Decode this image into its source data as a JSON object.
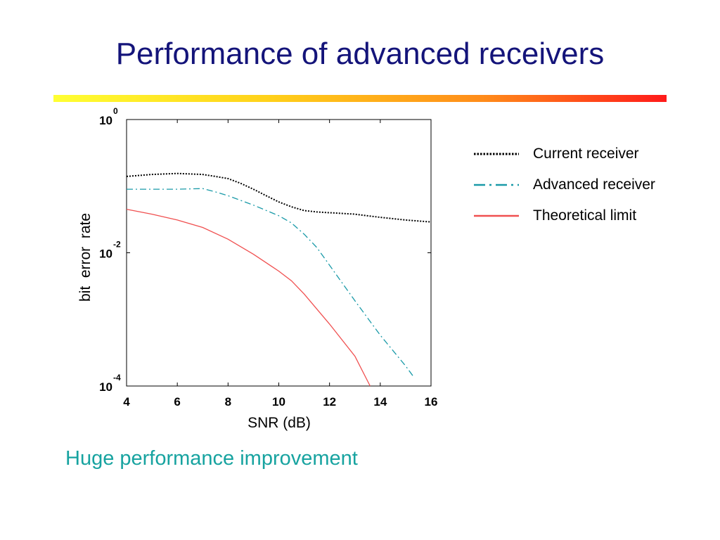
{
  "slide": {
    "title": "Performance of advanced receivers",
    "caption": "Huge performance improvement",
    "colors": {
      "title": "#14147a",
      "caption": "#17a3a0"
    }
  },
  "chart_data": {
    "type": "line",
    "xlabel": "SNR (dB)",
    "ylabel": "bit  error  rate",
    "xlim": [
      4,
      16
    ],
    "ylim": [
      0.0001,
      1
    ],
    "yscale": "log",
    "xticks": [
      4,
      6,
      8,
      10,
      12,
      14,
      16
    ],
    "yticks": [
      {
        "base": "10",
        "exp": "0"
      },
      {
        "base": "10",
        "exp": "-2"
      },
      {
        "base": "10",
        "exp": "-4"
      }
    ],
    "grid": false,
    "legend": "right",
    "series": [
      {
        "name": "Current receiver",
        "color": "#000000",
        "style": "dotted",
        "points": [
          [
            4,
            0.14
          ],
          [
            5,
            0.15
          ],
          [
            6,
            0.155
          ],
          [
            7,
            0.15
          ],
          [
            7.5,
            0.14
          ],
          [
            8,
            0.13
          ],
          [
            8.5,
            0.11
          ],
          [
            9,
            0.09
          ],
          [
            9.5,
            0.072
          ],
          [
            10,
            0.058
          ],
          [
            10.5,
            0.049
          ],
          [
            11,
            0.043
          ],
          [
            11.5,
            0.041
          ],
          [
            12,
            0.04
          ],
          [
            13,
            0.038
          ],
          [
            14,
            0.034
          ],
          [
            15,
            0.031
          ],
          [
            16,
            0.029
          ]
        ]
      },
      {
        "name": "Advanced receiver",
        "color": "#1a9aa8",
        "style": "dashdot",
        "points": [
          [
            4,
            0.09
          ],
          [
            5,
            0.09
          ],
          [
            6,
            0.09
          ],
          [
            7,
            0.092
          ],
          [
            7.5,
            0.082
          ],
          [
            8,
            0.072
          ],
          [
            9,
            0.052
          ],
          [
            10,
            0.036
          ],
          [
            10.5,
            0.028
          ],
          [
            11,
            0.019
          ],
          [
            11.5,
            0.012
          ],
          [
            12,
            0.0065
          ],
          [
            13,
            0.0019
          ],
          [
            14,
            0.00058
          ],
          [
            15,
            0.0002
          ],
          [
            15.3,
            0.00014
          ]
        ]
      },
      {
        "name": "Theoretical limit",
        "color": "#f05050",
        "style": "solid",
        "points": [
          [
            4,
            0.045
          ],
          [
            5,
            0.038
          ],
          [
            6,
            0.031
          ],
          [
            7,
            0.024
          ],
          [
            8,
            0.016
          ],
          [
            9,
            0.0095
          ],
          [
            10,
            0.0053
          ],
          [
            10.5,
            0.0038
          ],
          [
            11,
            0.0024
          ],
          [
            12,
            0.00085
          ],
          [
            13,
            0.00028
          ],
          [
            13.6,
            0.0001
          ]
        ]
      }
    ]
  }
}
